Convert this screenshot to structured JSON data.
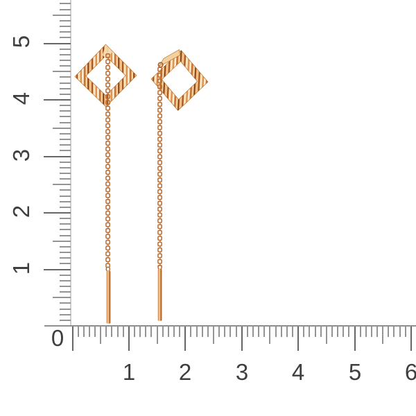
{
  "rulers": {
    "origin_label": "0",
    "vertical": {
      "labels": [
        "5",
        "4",
        "3",
        "2",
        "1"
      ]
    },
    "horizontal": {
      "labels": [
        "1",
        "2",
        "3",
        "4",
        "5",
        "6"
      ]
    }
  },
  "product": {
    "image_subject": "pair of rose-gold threader earrings with faceted open square tops, cable chains and drop bars",
    "colors": {
      "gold_highlight": "#fdf2dc",
      "gold_light": "#fbe7c3",
      "gold_mid": "#e0924f",
      "gold_chain": "#b4662c",
      "gold_deep": "#a9571f",
      "gold_dark": "#8a4014"
    }
  },
  "ruler_style": {
    "tick_minor_color": "#949494",
    "tick_major_color": "#666666",
    "edge_color": "#cdcdcd",
    "label_color": "#3f3f3f",
    "background": "#ffffff"
  }
}
